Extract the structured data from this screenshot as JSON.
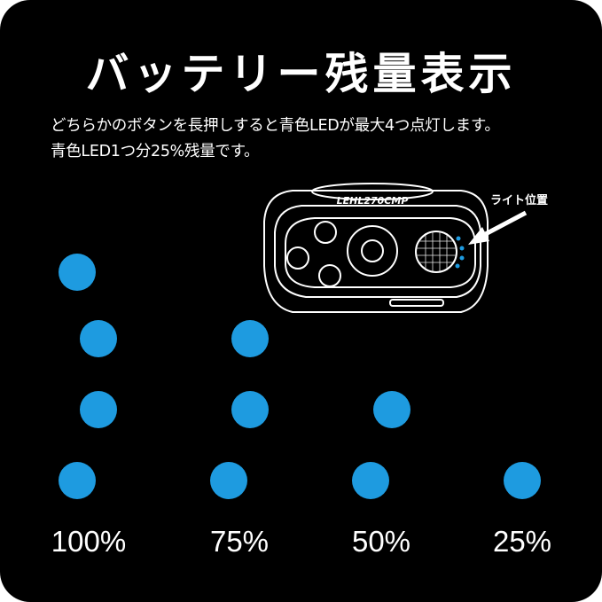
{
  "title": "バッテリー残量表示",
  "description": {
    "line1": "どちらかのボタンを長押しすると青色LEDが最大4つ点灯します。",
    "line2": "青色LED1つ分25%残量です。"
  },
  "device": {
    "model_label": "LEHL270CMP",
    "callout_label": "ライト位置",
    "led_count": 4
  },
  "colors": {
    "background": "#000000",
    "led_blue": "#1e9be0",
    "text": "#ffffff"
  },
  "levels": [
    {
      "label": "100%",
      "lit": 4
    },
    {
      "label": "75%",
      "lit": 3
    },
    {
      "label": "50%",
      "lit": 2
    },
    {
      "label": "25%",
      "lit": 1
    }
  ]
}
